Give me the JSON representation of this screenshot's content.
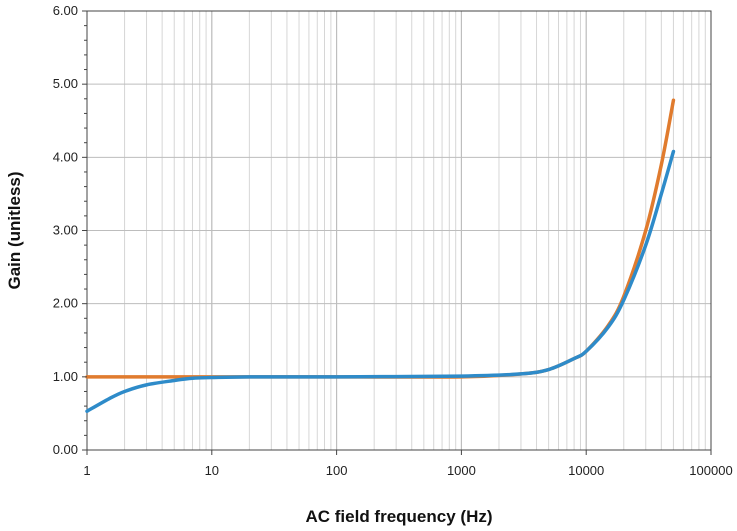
{
  "chart_data": {
    "type": "line",
    "title": "",
    "xlabel": "AC field frequency (Hz)",
    "ylabel": "Gain (unitless)",
    "xscale": "log",
    "xlim": [
      1,
      100000
    ],
    "ylim": [
      0,
      6
    ],
    "grid": true,
    "legend": "none",
    "x_ticks": [
      "1",
      "10",
      "100",
      "1000",
      "10000",
      "100000"
    ],
    "y_ticks": [
      "0.00",
      "1.00",
      "2.00",
      "3.00",
      "4.00",
      "5.00",
      "6.00"
    ],
    "series": [
      {
        "color": "#E07B2E",
        "x": [
          1,
          10,
          100,
          1000,
          3000,
          5000,
          8000,
          10000,
          15000,
          20000,
          30000,
          40000,
          50000
        ],
        "y": [
          1.0,
          1.0,
          1.0,
          1.0,
          1.04,
          1.1,
          1.25,
          1.35,
          1.7,
          2.1,
          3.0,
          3.9,
          4.78
        ]
      },
      {
        "color": "#2E8BC9",
        "x": [
          1,
          1.5,
          2,
          3,
          5,
          7,
          10,
          20,
          100,
          1000,
          3000,
          5000,
          8000,
          10000,
          15000,
          20000,
          30000,
          40000,
          50000
        ],
        "y": [
          0.53,
          0.7,
          0.8,
          0.89,
          0.95,
          0.98,
          0.99,
          1.0,
          1.0,
          1.01,
          1.04,
          1.1,
          1.25,
          1.35,
          1.68,
          2.05,
          2.8,
          3.5,
          4.08
        ]
      }
    ]
  }
}
